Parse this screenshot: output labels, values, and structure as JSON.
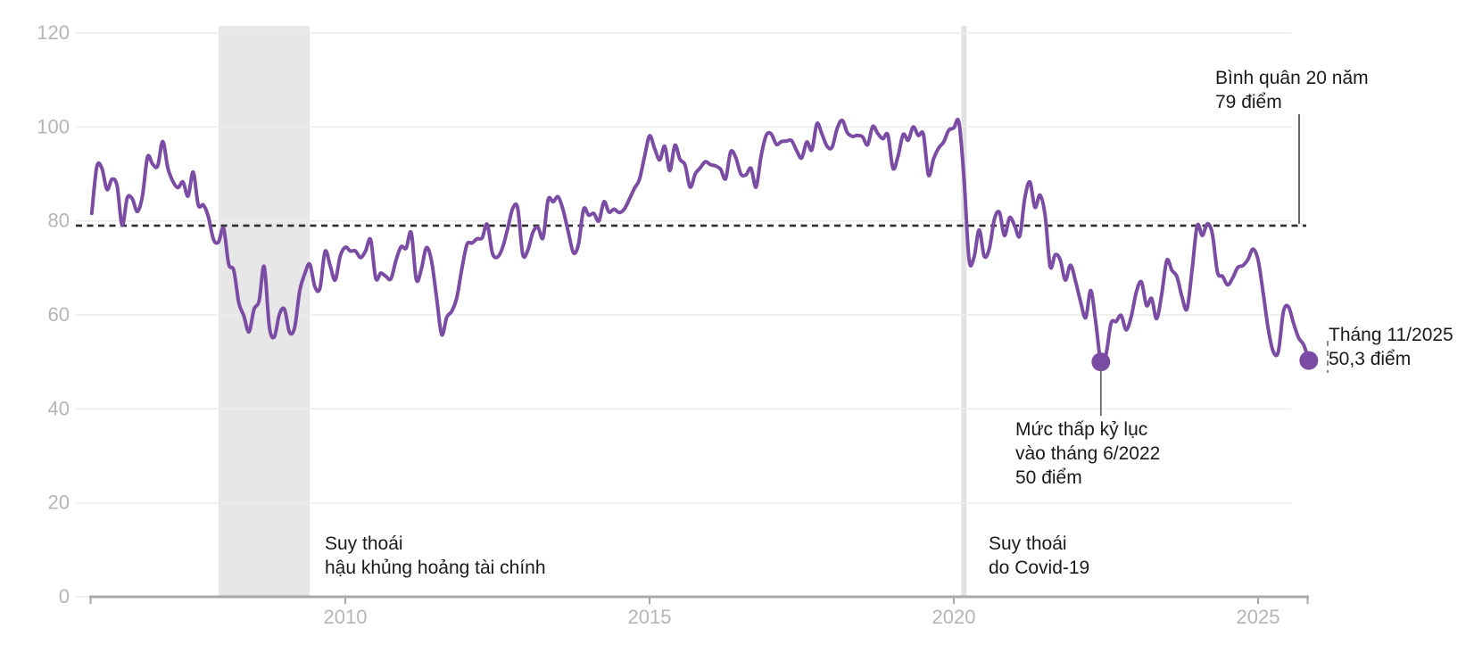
{
  "chart_data": {
    "type": "line",
    "title": "",
    "xlabel": "",
    "ylabel": "",
    "ylim": [
      0,
      120
    ],
    "y_ticks": [
      0,
      20,
      40,
      60,
      80,
      100,
      120
    ],
    "x_tick_years": [
      2010,
      2015,
      2020,
      2025
    ],
    "grid": true,
    "legend": "none",
    "series_start": {
      "year": 2005,
      "month": 11
    },
    "series_end": {
      "year": 2025,
      "month": 11
    },
    "monthly_values": [
      81.6,
      91.5,
      91.2,
      86.7,
      88.9,
      87.4,
      79.1,
      84.9,
      84.7,
      82.0,
      85.4,
      93.6,
      92.1,
      91.7,
      96.9,
      91.3,
      88.4,
      87.1,
      88.3,
      85.3,
      90.4,
      83.4,
      83.4,
      80.9,
      76.1,
      75.5,
      78.4,
      70.8,
      69.5,
      62.6,
      59.8,
      56.4,
      61.2,
      63.0,
      70.3,
      57.6,
      55.3,
      60.1,
      61.2,
      56.3,
      57.3,
      65.1,
      68.7,
      70.8,
      66.0,
      65.7,
      73.5,
      70.6,
      67.4,
      72.5,
      74.4,
      73.6,
      73.6,
      72.2,
      73.6,
      76.0,
      67.8,
      68.9,
      68.2,
      67.7,
      71.6,
      74.5,
      74.2,
      77.5,
      67.5,
      69.8,
      74.3,
      71.5,
      63.7,
      55.8,
      59.5,
      60.8,
      63.7,
      69.9,
      75.0,
      75.3,
      76.2,
      76.4,
      79.3,
      73.2,
      72.3,
      74.3,
      78.3,
      82.6,
      82.7,
      72.9,
      73.8,
      77.6,
      78.6,
      76.4,
      84.5,
      84.1,
      85.1,
      82.1,
      77.5,
      73.2,
      75.1,
      82.5,
      81.2,
      81.6,
      80.0,
      84.1,
      81.9,
      82.5,
      81.8,
      82.5,
      84.6,
      86.9,
      88.8,
      93.6,
      98.1,
      95.4,
      93.0,
      95.9,
      90.7,
      96.1,
      93.1,
      91.9,
      87.2,
      90.0,
      91.3,
      92.6,
      92.0,
      91.7,
      91.0,
      89.0,
      94.7,
      93.5,
      90.0,
      89.8,
      91.2,
      87.2,
      93.8,
      98.2,
      98.5,
      96.3,
      96.9,
      97.0,
      97.1,
      95.0,
      93.4,
      96.8,
      95.1,
      100.7,
      98.5,
      95.9,
      95.7,
      99.7,
      101.4,
      98.8,
      98.0,
      98.2,
      97.9,
      96.2,
      100.1,
      98.6,
      97.5,
      98.3,
      91.2,
      93.8,
      98.4,
      97.2,
      100.0,
      98.2,
      98.4,
      89.8,
      93.2,
      95.5,
      96.8,
      99.3,
      99.8,
      101.0,
      89.1,
      71.8,
      72.3,
      78.1,
      72.5,
      74.1,
      80.4,
      81.8,
      76.9,
      80.7,
      79.0,
      76.8,
      84.9,
      88.3,
      82.9,
      85.5,
      81.2,
      70.3,
      72.8,
      71.7,
      67.4,
      70.6,
      67.2,
      62.8,
      59.4,
      65.2,
      58.4,
      50.0,
      51.5,
      58.2,
      58.6,
      59.9,
      56.8,
      59.7,
      64.9,
      67.0,
      62.0,
      63.5,
      59.2,
      64.4,
      71.6,
      69.5,
      68.1,
      63.8,
      61.3,
      69.7,
      79.0,
      76.9,
      79.4,
      77.2,
      69.1,
      68.2,
      66.4,
      67.9,
      70.1,
      70.5,
      71.8,
      74.0,
      71.7,
      64.7,
      57.0,
      52.2,
      52.2,
      60.7,
      61.7,
      58.2,
      55.1,
      53.6,
      50.3
    ],
    "average_line": {
      "value": 79
    },
    "recession_band": {
      "start_year": 2007,
      "start_month": 12,
      "end_year": 2009,
      "end_month": 6
    },
    "covid_line": {
      "year": 2020,
      "month": 3
    },
    "markers": [
      {
        "name": "record-low",
        "year": 2022,
        "month": 6,
        "value": 50
      },
      {
        "name": "latest",
        "year": 2025,
        "month": 11,
        "value": 50.3
      }
    ]
  },
  "annotations": {
    "average": {
      "line1": "Bình quân 20 năm",
      "line2": "79 điểm"
    },
    "latest": {
      "line1": "Tháng 11/2025",
      "line2": "50,3 điểm"
    },
    "record_low": {
      "line1": "Mức thấp kỷ lục",
      "line2": "vào tháng 6/2022",
      "line3": "50 điểm"
    },
    "recession_2008": {
      "line1": "Suy thoái",
      "line2": "hậu khủng hoảng tài chính"
    },
    "recession_covid": {
      "line1": "Suy thoái",
      "line2": "do Covid-19"
    }
  },
  "colors": {
    "line": "#7a4ca3",
    "marker_dot": "#7a4ca3",
    "recession_band": "#e7e7e7",
    "covid_line": "#e2e2e2",
    "grid": "#ececec",
    "axis": "#a8a8a8",
    "tick_label": "#b5b5b5",
    "average_dash": "#2f2f2f",
    "connector": "#666666",
    "annotation_text": "#1a1a1a"
  }
}
